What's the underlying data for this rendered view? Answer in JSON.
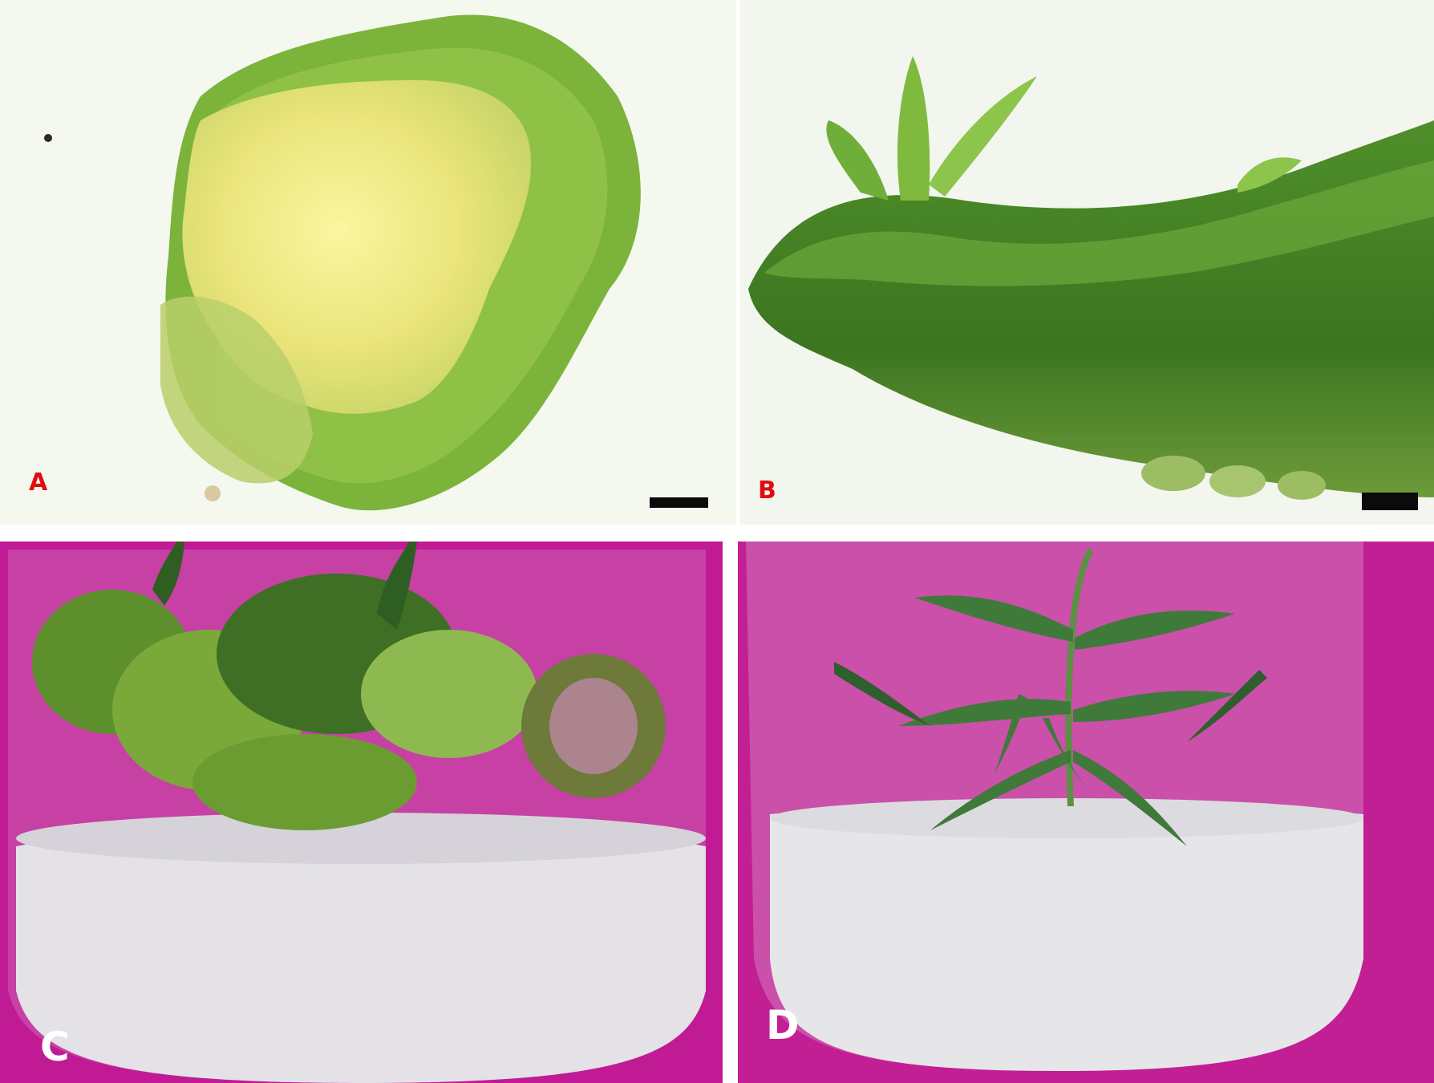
{
  "panels": [
    {
      "label": "A",
      "label_color": "#e00d10",
      "background": "#f4f8ef",
      "has_scale_bar": true
    },
    {
      "label": "B",
      "label_color": "#e00d10",
      "background": "#f2f6ee",
      "has_scale_bar": true
    },
    {
      "label": "C",
      "label_color": "#ffffff",
      "background": "#c01b94",
      "has_scale_bar": false
    },
    {
      "label": "D",
      "label_color": "#ffffff",
      "background": "#c21f95",
      "has_scale_bar": false
    }
  ],
  "colors": {
    "callus_yellow": "#e8e27a",
    "tissue_green": "#5f9a2a",
    "leaf_green": "#3f7a3a",
    "medium_white": "#e6e4e8",
    "backdrop_magenta": "#c01b94"
  }
}
